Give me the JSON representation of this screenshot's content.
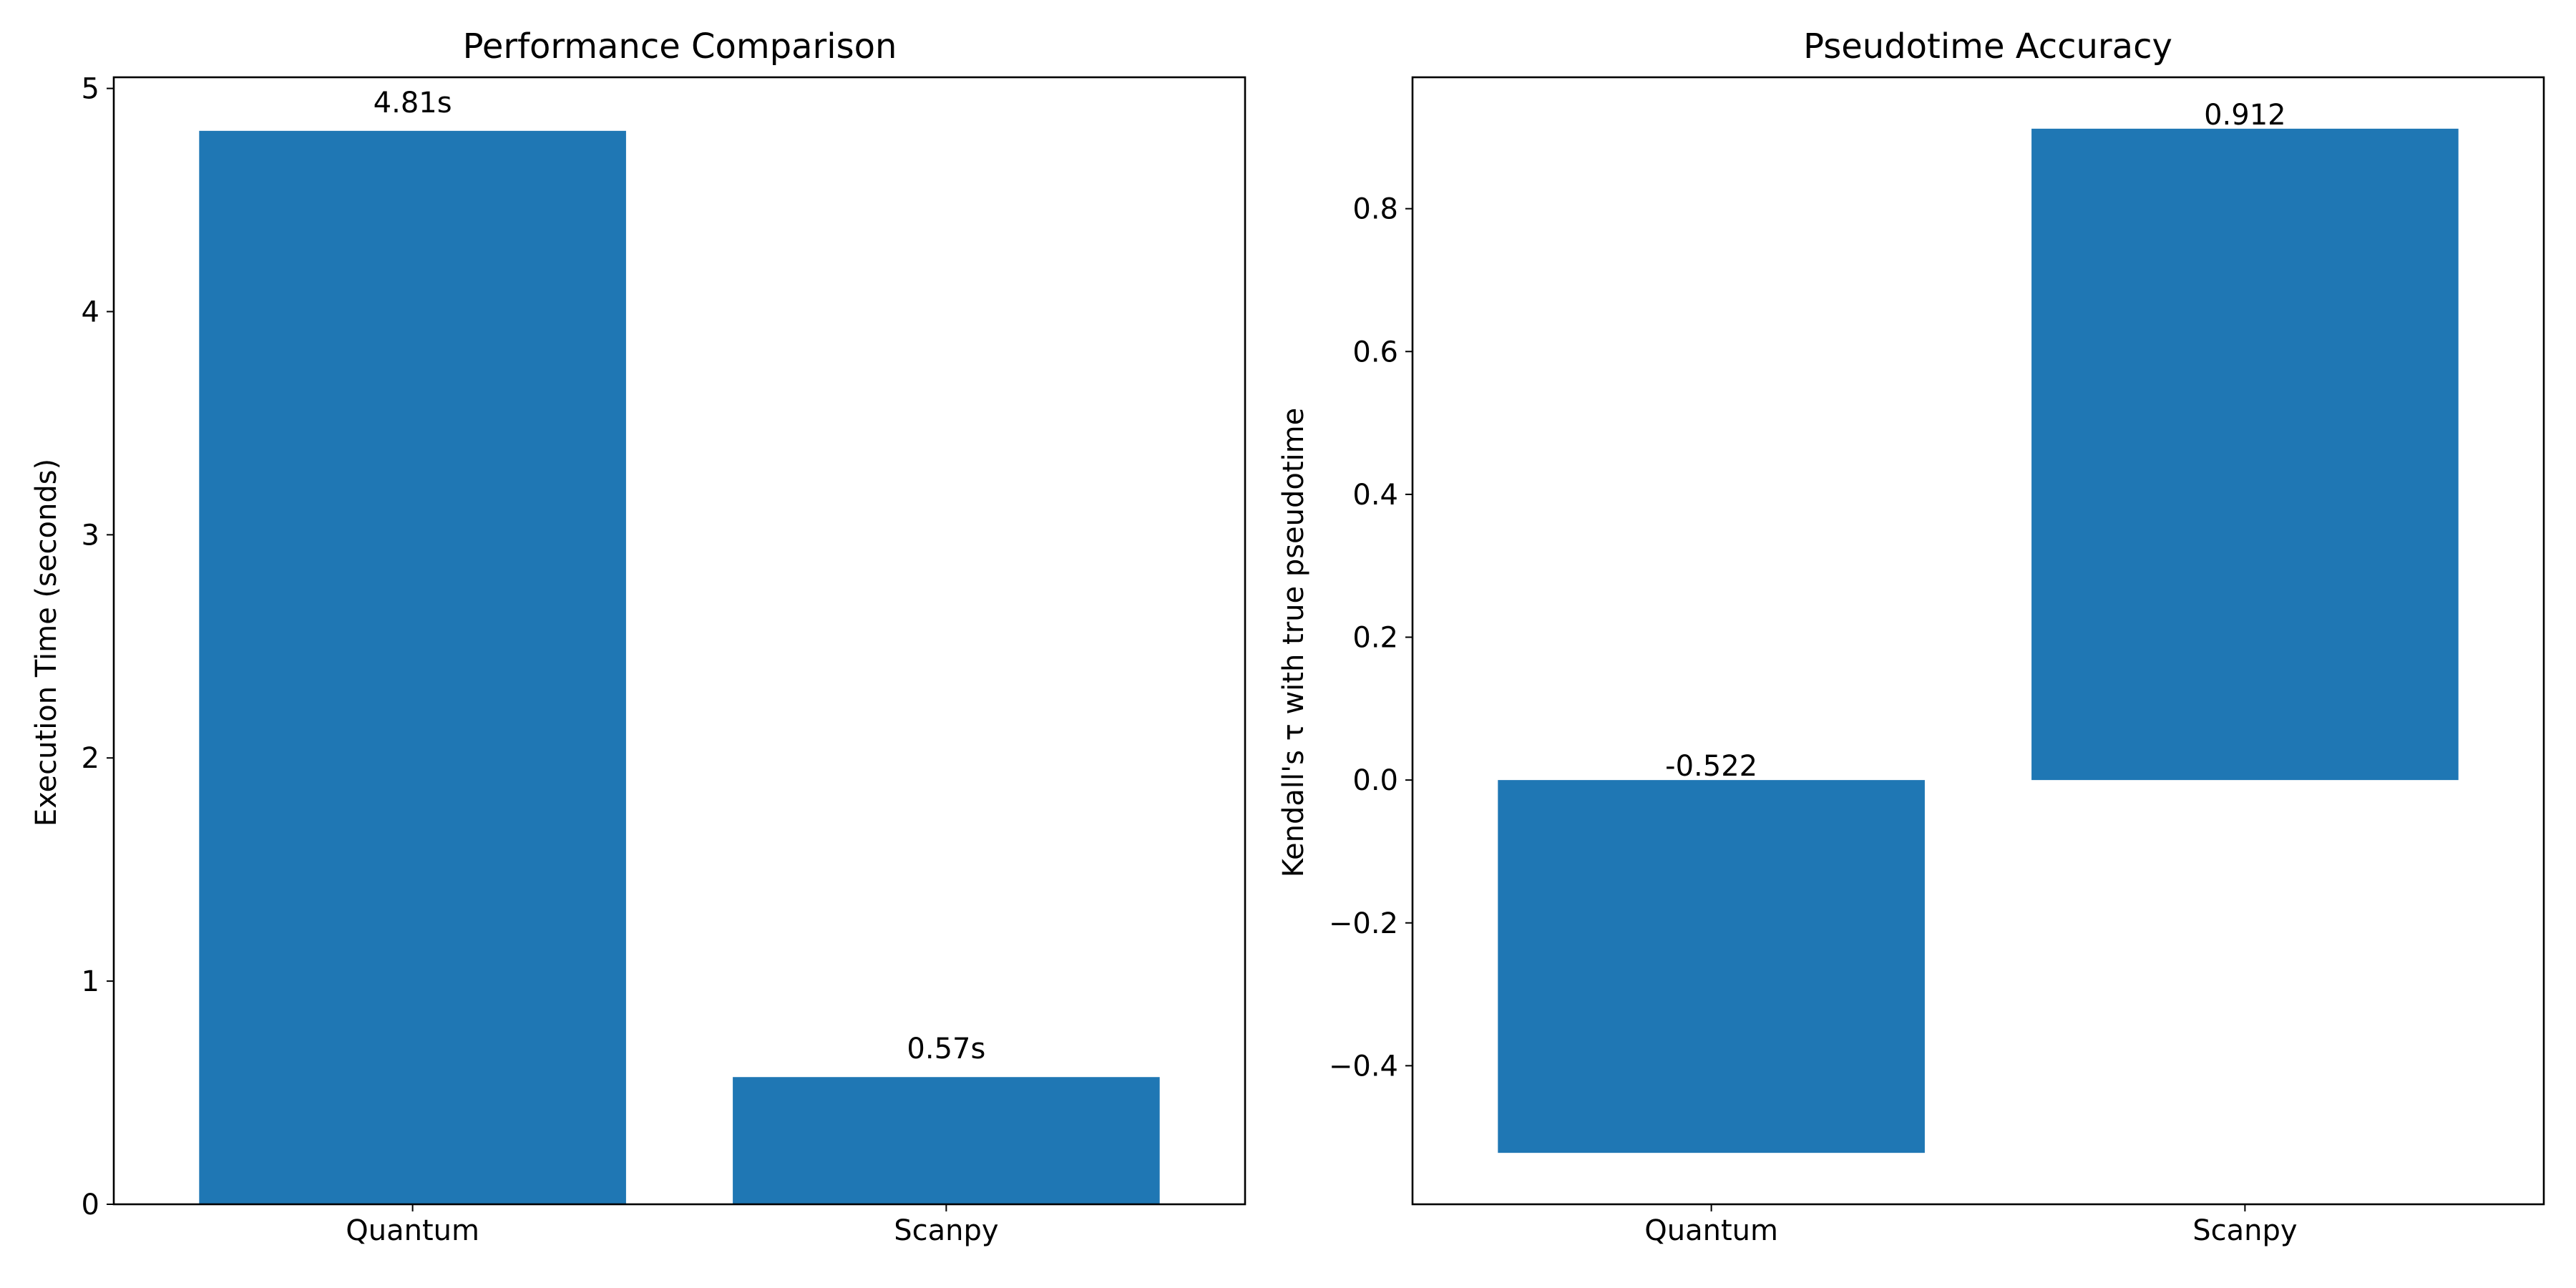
{
  "chart_data": [
    {
      "type": "bar",
      "title": "Performance Comparison",
      "xlabel": "",
      "ylabel": "Execution Time (seconds)",
      "categories": [
        "Quantum",
        "Scanpy"
      ],
      "values": [
        4.81,
        0.57
      ],
      "data_labels": [
        "4.81s",
        "0.57s"
      ],
      "ylim": [
        0,
        5.05
      ],
      "yticks": [
        0,
        1,
        2,
        3,
        4,
        5
      ],
      "ytick_labels": [
        "0",
        "1",
        "2",
        "3",
        "4",
        "5"
      ],
      "grid": false,
      "legend": "none",
      "bar_color": "#1f77b4"
    },
    {
      "type": "bar",
      "title": "Pseudotime Accuracy",
      "xlabel": "",
      "ylabel": "Kendall's τ with true pseudotime",
      "categories": [
        "Quantum",
        "Scanpy"
      ],
      "values": [
        -0.522,
        0.912
      ],
      "data_labels": [
        "-0.522",
        "0.912"
      ],
      "ylim": [
        -0.594,
        0.984
      ],
      "yticks": [
        -0.4,
        -0.2,
        0.0,
        0.2,
        0.4,
        0.6,
        0.8
      ],
      "ytick_labels": [
        "−0.4",
        "−0.2",
        "0.0",
        "0.2",
        "0.4",
        "0.6",
        "0.8"
      ],
      "grid": false,
      "legend": "none",
      "bar_color": "#1f77b4"
    }
  ]
}
